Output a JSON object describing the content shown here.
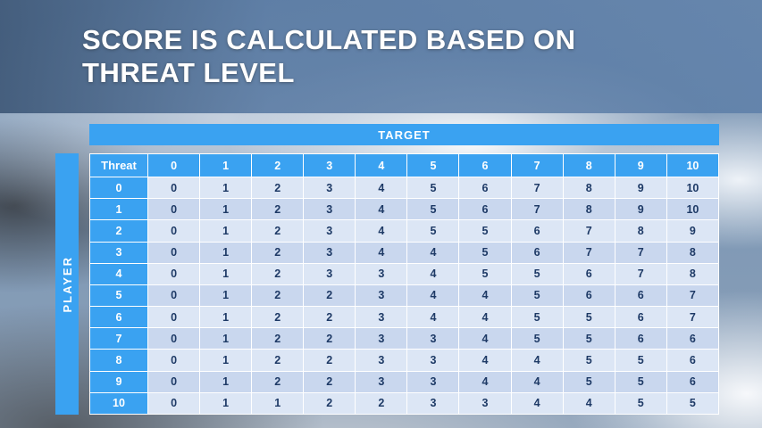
{
  "title": {
    "line1": "SCORE IS CALCULATED BASED ON",
    "line2": "THREAT LEVEL"
  },
  "axes": {
    "target_label": "TARGET",
    "player_label": "PLAYER"
  },
  "table": {
    "corner_label": "Threat",
    "column_headers": [
      "0",
      "1",
      "2",
      "3",
      "4",
      "5",
      "6",
      "7",
      "8",
      "9",
      "10"
    ],
    "rows": [
      {
        "label": "0",
        "values": [
          0,
          1,
          2,
          3,
          4,
          5,
          6,
          7,
          8,
          9,
          10
        ]
      },
      {
        "label": "1",
        "values": [
          0,
          1,
          2,
          3,
          4,
          5,
          6,
          7,
          8,
          9,
          10
        ]
      },
      {
        "label": "2",
        "values": [
          0,
          1,
          2,
          3,
          4,
          5,
          5,
          6,
          7,
          8,
          9
        ]
      },
      {
        "label": "3",
        "values": [
          0,
          1,
          2,
          3,
          4,
          4,
          5,
          6,
          7,
          7,
          8
        ]
      },
      {
        "label": "4",
        "values": [
          0,
          1,
          2,
          3,
          3,
          4,
          5,
          5,
          6,
          7,
          8
        ]
      },
      {
        "label": "5",
        "values": [
          0,
          1,
          2,
          2,
          3,
          4,
          4,
          5,
          6,
          6,
          7
        ]
      },
      {
        "label": "6",
        "values": [
          0,
          1,
          2,
          2,
          3,
          4,
          4,
          5,
          5,
          6,
          7
        ]
      },
      {
        "label": "7",
        "values": [
          0,
          1,
          2,
          2,
          3,
          3,
          4,
          5,
          5,
          6,
          6
        ]
      },
      {
        "label": "8",
        "values": [
          0,
          1,
          2,
          2,
          3,
          3,
          4,
          4,
          5,
          5,
          6
        ]
      },
      {
        "label": "9",
        "values": [
          0,
          1,
          2,
          2,
          3,
          3,
          4,
          4,
          5,
          5,
          6
        ]
      },
      {
        "label": "10",
        "values": [
          0,
          1,
          1,
          2,
          2,
          3,
          3,
          4,
          4,
          5,
          5
        ]
      }
    ]
  },
  "colors": {
    "accent_blue": "#3aa2f1",
    "title_band": "#4a76ab",
    "band_light": "#dce6f5",
    "band_dark": "#c9d7ee",
    "cell_text": "#1e3a66"
  }
}
